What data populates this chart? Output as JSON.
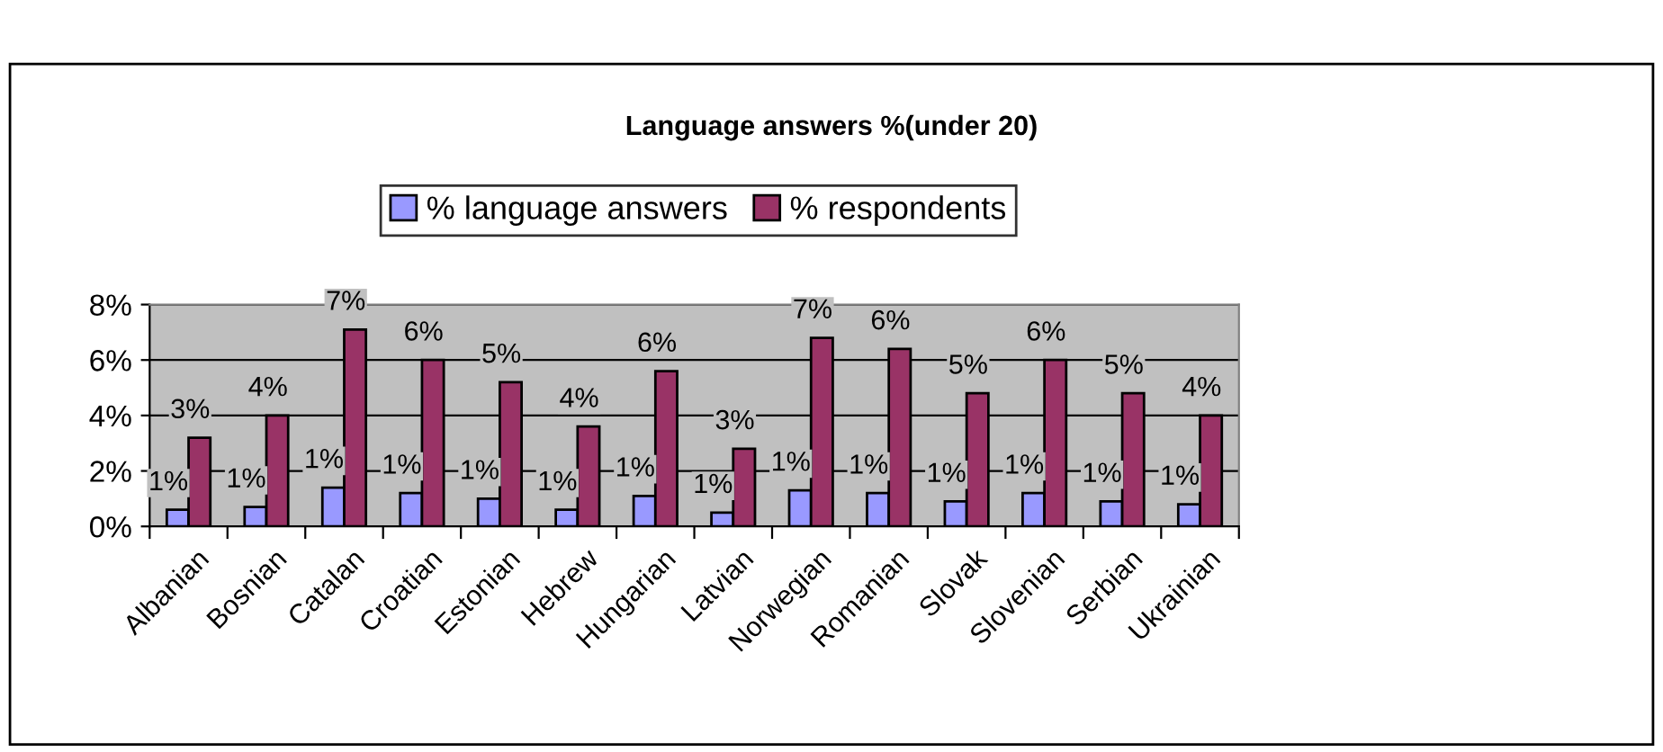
{
  "chart_data": {
    "type": "bar",
    "title": "Language answers %(under 20)",
    "categories": [
      "Albanian",
      "Bosnian",
      "Catalan",
      "Croatian",
      "Estonian",
      "Hebrew",
      "Hungarian",
      "Latvian",
      "Norwegian",
      "Romanian",
      "Slovak",
      "Slovenian",
      "Serbian",
      "Ukrainian"
    ],
    "series": [
      {
        "name": "% language answers",
        "color": "#9999ff",
        "values": [
          0.6,
          0.7,
          1.4,
          1.2,
          1.0,
          0.6,
          1.1,
          0.5,
          1.3,
          1.2,
          0.9,
          1.2,
          0.9,
          0.8
        ],
        "value_labels": [
          "1%",
          "1%",
          "1%",
          "1%",
          "1%",
          "1%",
          "1%",
          "1%",
          "1%",
          "1%",
          "1%",
          "1%",
          "1%",
          "1%"
        ]
      },
      {
        "name": "% respondents",
        "color": "#993366",
        "values": [
          3.2,
          4.0,
          7.1,
          6.0,
          5.2,
          3.6,
          5.6,
          2.8,
          6.8,
          6.4,
          4.8,
          6.0,
          4.8,
          4.0
        ],
        "value_labels": [
          "3%",
          "4%",
          "7%",
          "6%",
          "5%",
          "4%",
          "6%",
          "3%",
          "7%",
          "6%",
          "5%",
          "6%",
          "5%",
          "4%"
        ]
      }
    ],
    "ylim": [
      0,
      8
    ],
    "yticks": [
      {
        "value": 0,
        "label": "0%"
      },
      {
        "value": 2,
        "label": "2%"
      },
      {
        "value": 4,
        "label": "4%"
      },
      {
        "value": 6,
        "label": "6%"
      },
      {
        "value": 8,
        "label": "8%"
      }
    ],
    "grid": "y",
    "legend": "top"
  }
}
